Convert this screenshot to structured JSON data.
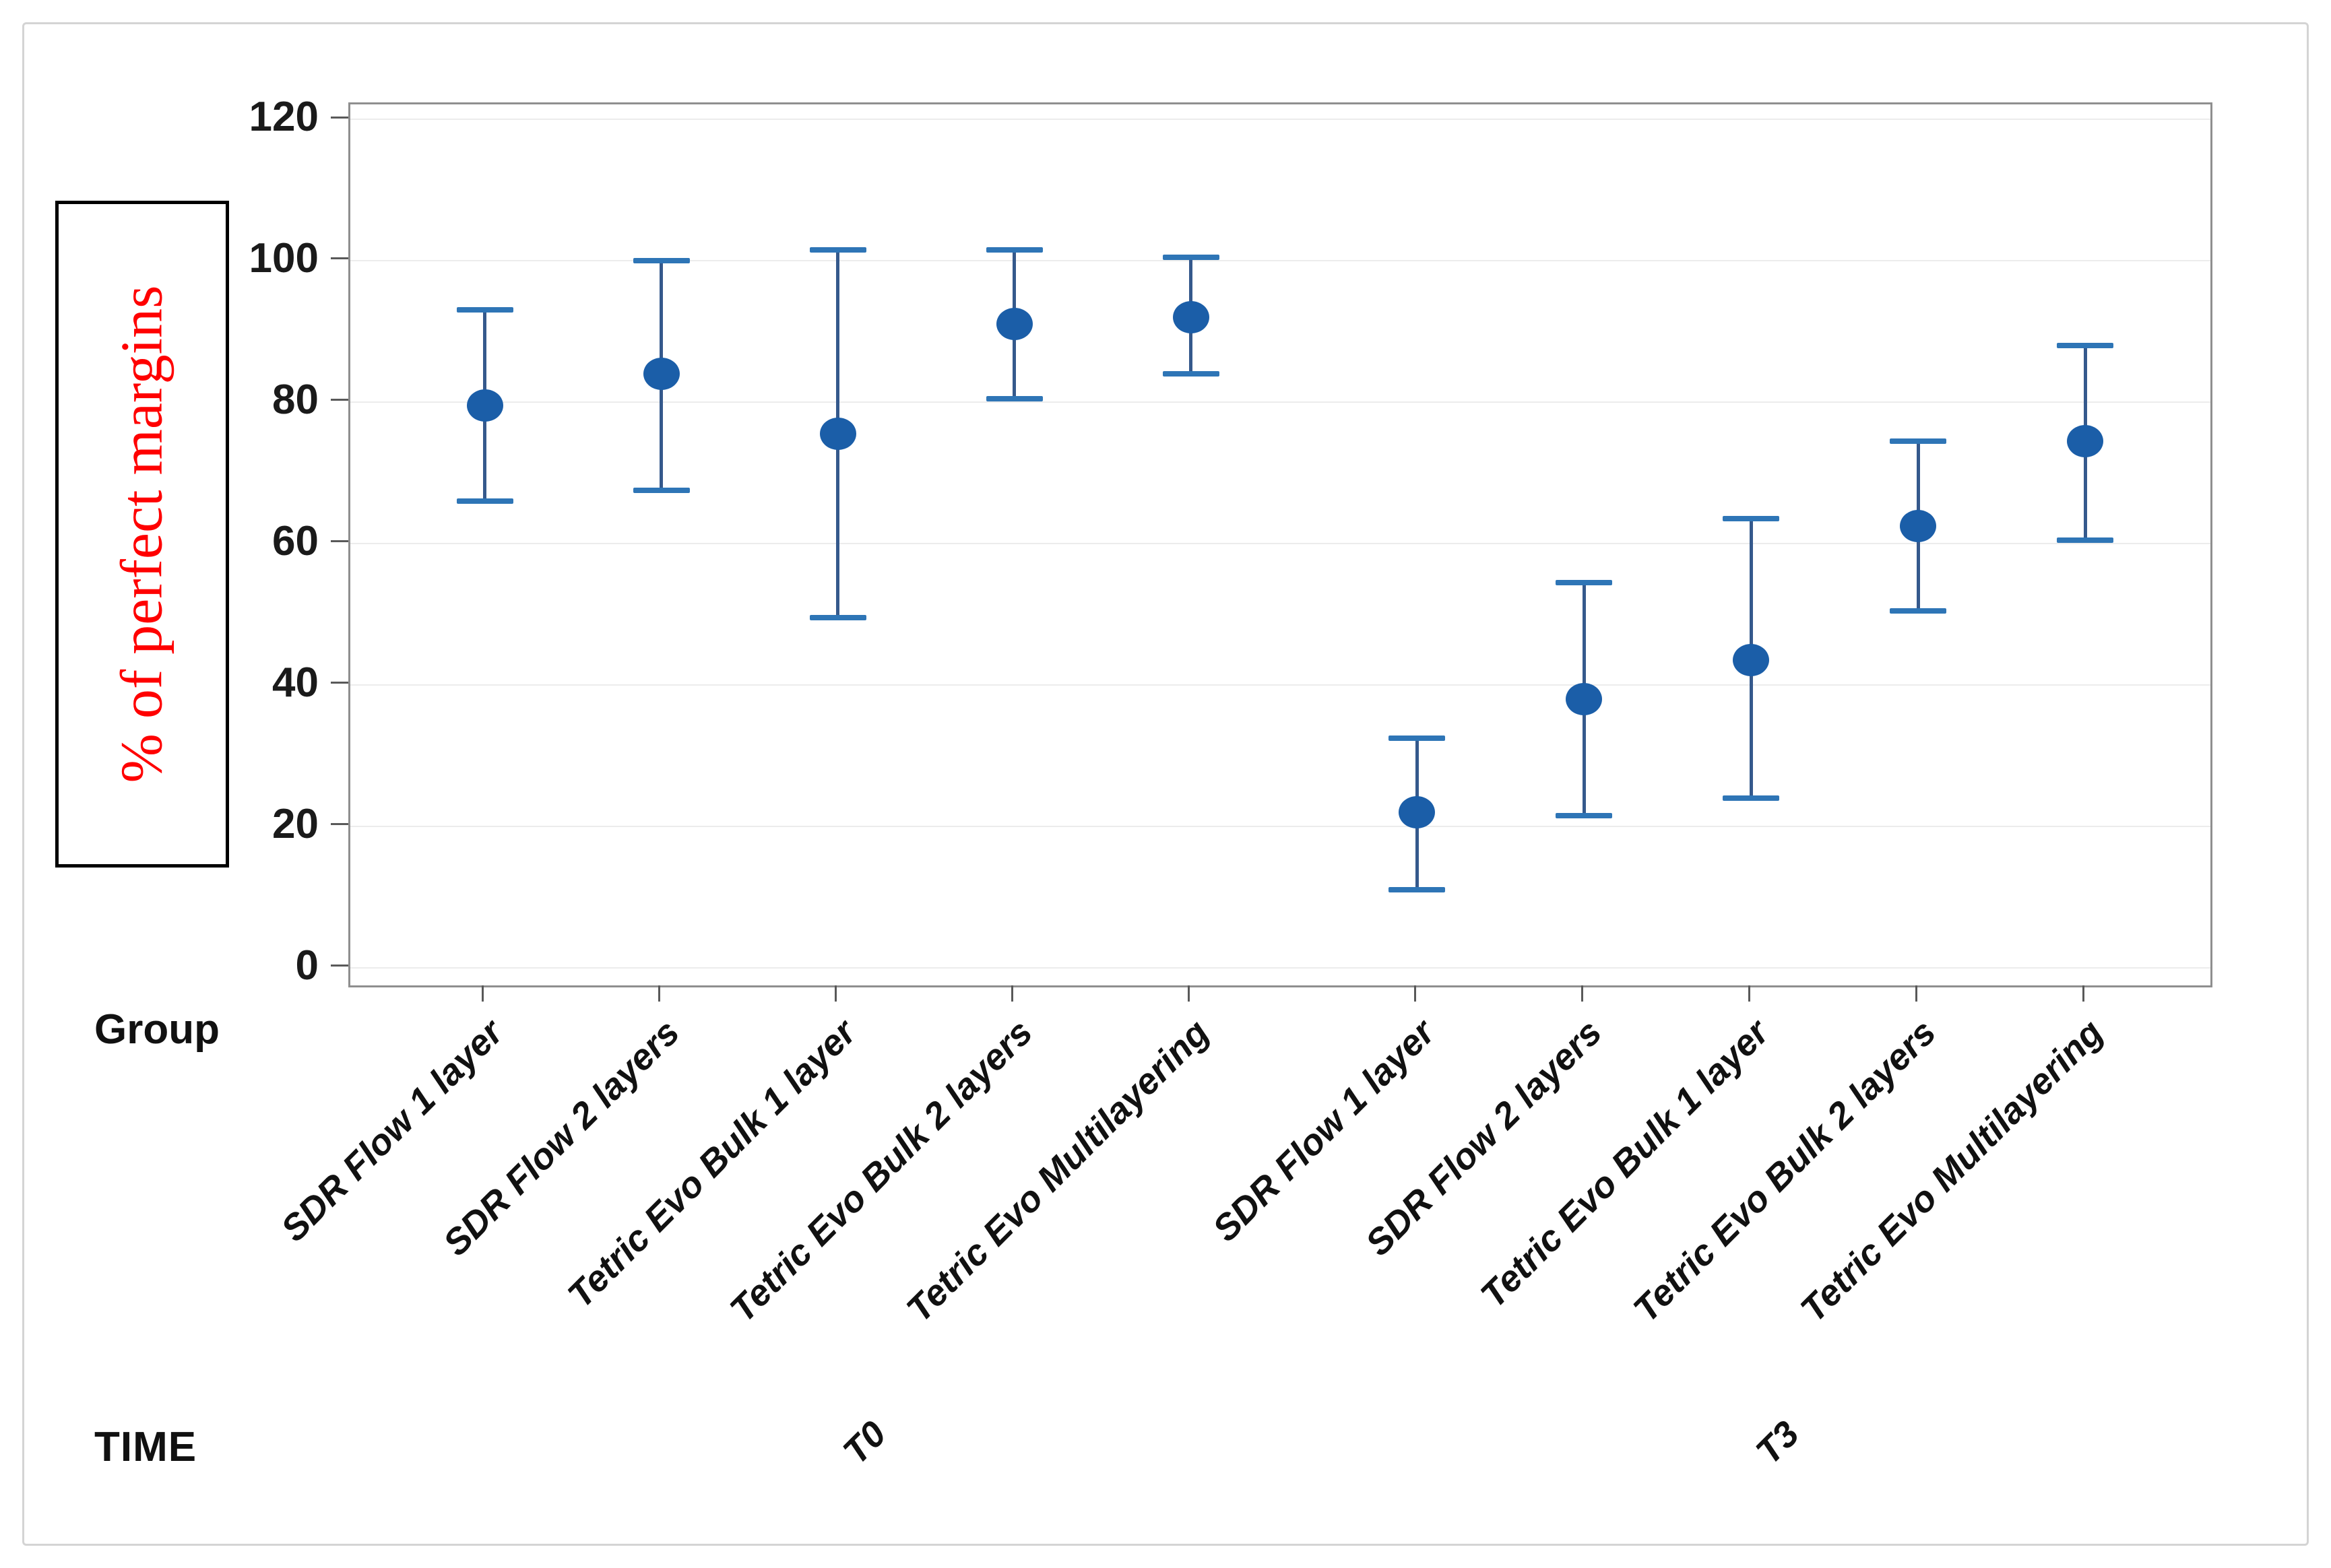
{
  "figure": {
    "y_axis_label": "% of perfect margins",
    "group_axis_caption": "Group",
    "time_axis_caption": "TIME",
    "colors": {
      "y_label_red": "#ff0000",
      "dot_fill": "#1b5ea8",
      "errorbar_line": "#35598c",
      "errorbar_cap": "#2e75b6",
      "gridline": "#ececec",
      "plot_border": "#8f8f8f",
      "tick": "#595959",
      "outer_border": "#d4d4d4"
    }
  },
  "chart_data": {
    "type": "scatter",
    "subtype": "interval-plot-mean-with-95ci",
    "title": "",
    "xlabel": "Group",
    "ylabel": "% of perfect margins",
    "ylim": [
      0,
      120
    ],
    "yticks": [
      0,
      20,
      40,
      60,
      80,
      100,
      120
    ],
    "grid": "horizontal-only",
    "legend": "none",
    "categories": [
      "SDR Flow 1 layer",
      "SDR Flow 2 layers",
      "Tetric Evo Bulk 1 layer",
      "Tetric Evo Bulk 2 layers",
      "Tetric Evo Multilayering"
    ],
    "panels": [
      {
        "time": "T0",
        "points": [
          {
            "group": "SDR Flow 1 layer",
            "mean": 79.5,
            "ci_low": 66,
            "ci_high": 93
          },
          {
            "group": "SDR Flow 2 layers",
            "mean": 84,
            "ci_low": 67.5,
            "ci_high": 100
          },
          {
            "group": "Tetric Evo Bulk 1 layer",
            "mean": 75.5,
            "ci_low": 49.5,
            "ci_high": 101.5
          },
          {
            "group": "Tetric Evo Bulk 2 layers",
            "mean": 91,
            "ci_low": 80.5,
            "ci_high": 101.5
          },
          {
            "group": "Tetric Evo Multilayering",
            "mean": 92,
            "ci_low": 84,
            "ci_high": 100.5
          }
        ]
      },
      {
        "time": "T3",
        "points": [
          {
            "group": "SDR Flow 1 layer",
            "mean": 22,
            "ci_low": 11,
            "ci_high": 32.5
          },
          {
            "group": "SDR Flow 2 layers",
            "mean": 38,
            "ci_low": 21.5,
            "ci_high": 54.5
          },
          {
            "group": "Tetric Evo Bulk 1 layer",
            "mean": 43.5,
            "ci_low": 24,
            "ci_high": 63.5
          },
          {
            "group": "Tetric Evo Bulk 2 layers",
            "mean": 62.5,
            "ci_low": 50.5,
            "ci_high": 74.5
          },
          {
            "group": "Tetric Evo Multilayering",
            "mean": 74.5,
            "ci_low": 60.5,
            "ci_high": 88
          }
        ]
      }
    ],
    "layout_hints": {
      "value_at_plot_top": 122.1,
      "value_at_plot_bottom": -2.5,
      "x_frac_start": {
        "T0": 0.0724,
        "T3": 0.5735
      },
      "x_frac_step": {
        "T0": 0.0949,
        "T3": 0.0898
      }
    }
  }
}
